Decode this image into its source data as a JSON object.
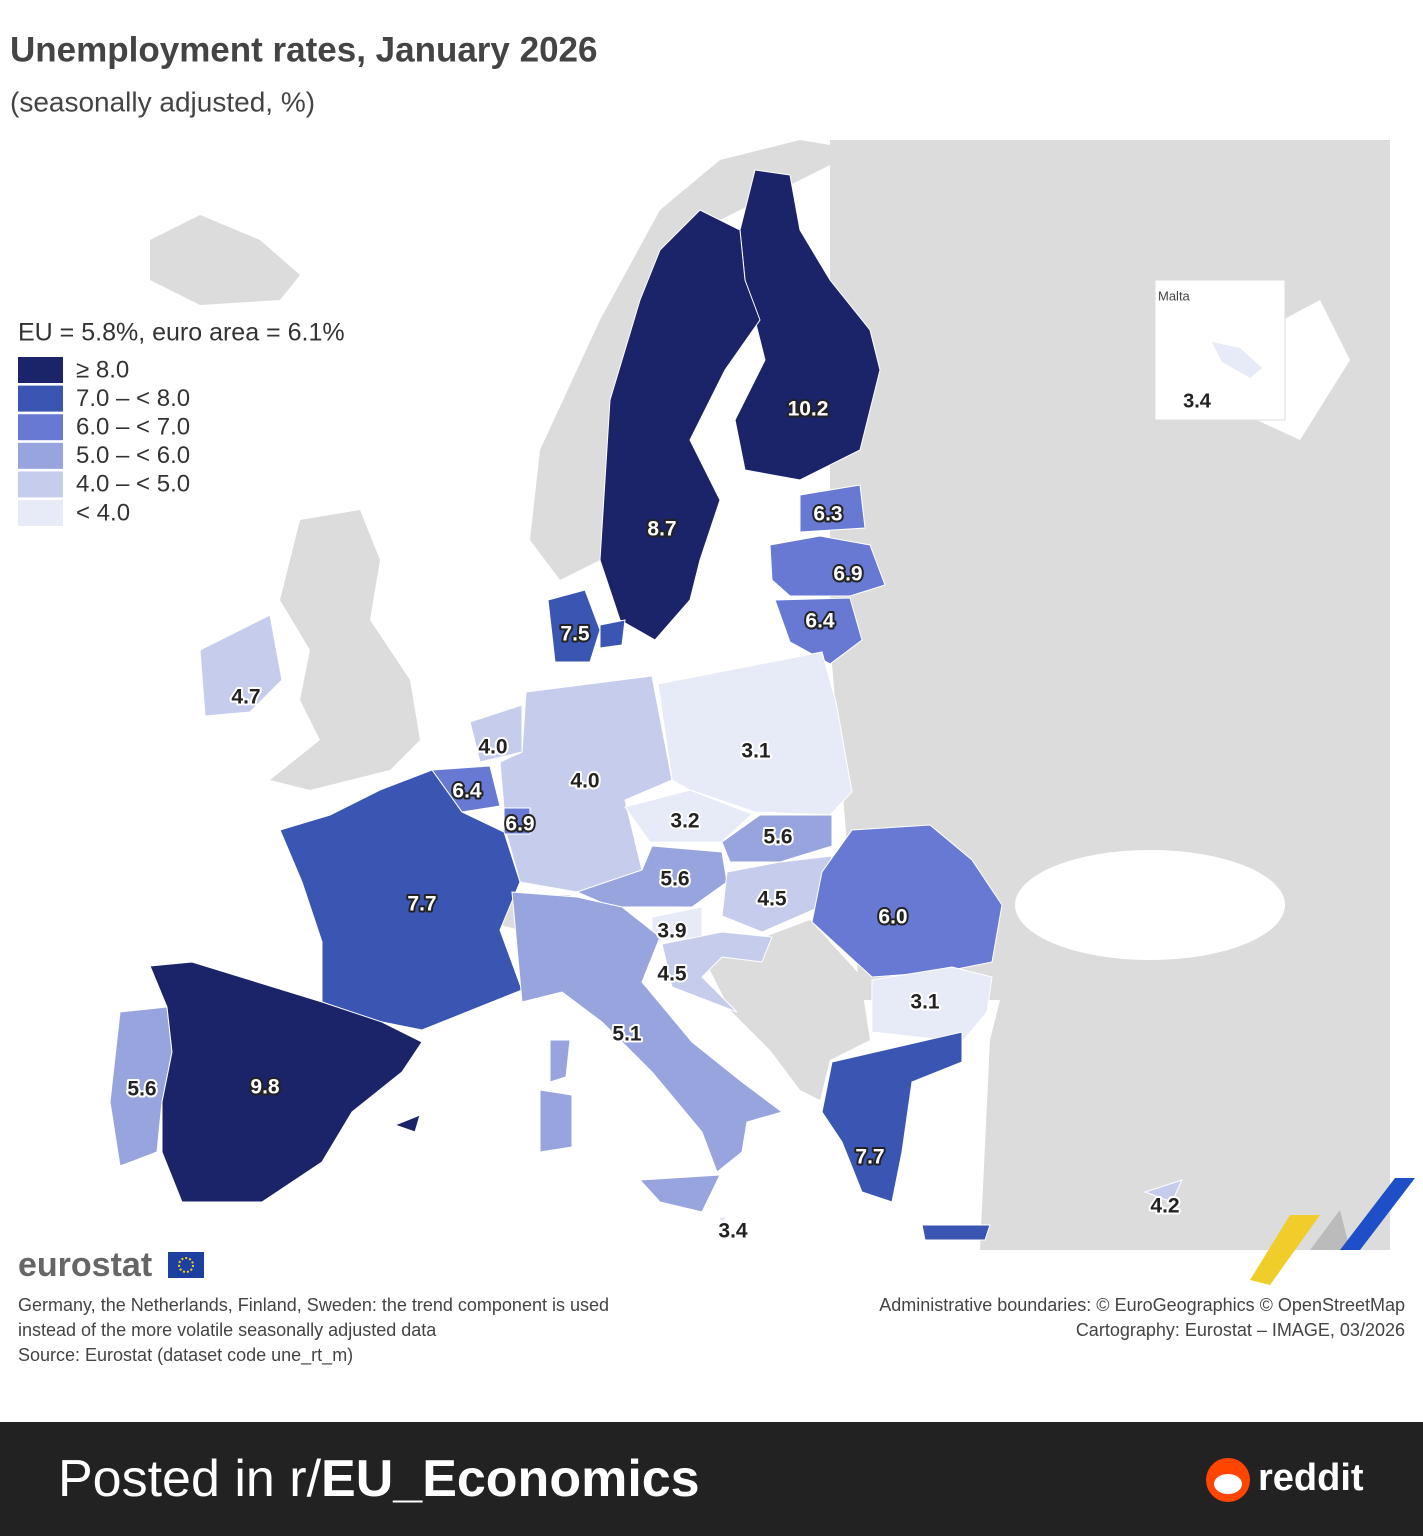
{
  "title": "Unemployment rates, January 2026",
  "subtitle": "(seasonally adjusted, %)",
  "legend": {
    "heading": "EU = 5.8%, euro area = 6.1%",
    "classes": [
      {
        "label": "≥ 8.0",
        "min": 8.0,
        "color": "#1b2468"
      },
      {
        "label": "7.0 – < 8.0",
        "min": 7.0,
        "color": "#3b56b2"
      },
      {
        "label": "6.0 – < 7.0",
        "min": 6.0,
        "color": "#6779d2"
      },
      {
        "label": "5.0 – < 6.0",
        "min": 5.0,
        "color": "#97a4de"
      },
      {
        "label": "4.0 – < 5.0",
        "min": 4.0,
        "color": "#c6ccec"
      },
      {
        "label": "< 4.0",
        "min": null,
        "color": "#e7eaf7"
      }
    ]
  },
  "regions": {
    "values": [
      10.2,
      8.7,
      6.3,
      6.9,
      6.4,
      7.5,
      4.7,
      4.0,
      4.0,
      3.1,
      6.4,
      6.9,
      3.2,
      5.6,
      5.6,
      4.5,
      7.7,
      6.0,
      3.9,
      4.5,
      3.1,
      5.1,
      5.6,
      9.8,
      7.7,
      4.2,
      3.4
    ],
    "value_labels": [
      "10.2",
      "8.7",
      "6.3",
      "6.9",
      "6.4",
      "7.5",
      "4.7",
      "4.0",
      "4.0",
      "3.1",
      "6.4",
      "6.9",
      "3.2",
      "5.6",
      "5.6",
      "4.5",
      "7.7",
      "6.0",
      "3.9",
      "4.5",
      "3.1",
      "5.1",
      "5.6",
      "9.8",
      "7.7",
      "4.2",
      "3.4"
    ]
  },
  "inset": {
    "title": "Malta",
    "value": 3.4,
    "value_label": "3.4"
  },
  "brand": "eurostat",
  "notes": [
    "Germany, the Netherlands, Finland, Sweden: the trend component is used",
    "instead of the more volatile seasonally adjusted data",
    "Source: Eurostat (dataset code une_rt_m)"
  ],
  "credits": [
    "Administrative boundaries: © EuroGeographics © OpenStreetMap",
    "Cartography: Eurostat – IMAGE, 03/2026"
  ],
  "footer": {
    "prefix": "Posted in r/",
    "community": "EU_Economics",
    "site": "reddit"
  }
}
